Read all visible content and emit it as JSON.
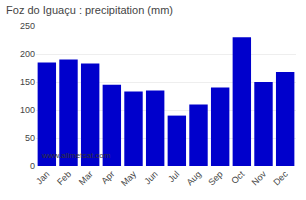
{
  "chart_data": {
    "type": "bar",
    "title": "Foz do Iguaçu : precipitation (mm)",
    "categories": [
      "Jan",
      "Feb",
      "Mar",
      "Apr",
      "May",
      "Jun",
      "Jul",
      "Aug",
      "Sep",
      "Oct",
      "Nov",
      "Dec"
    ],
    "values": [
      185,
      190,
      183,
      145,
      133,
      135,
      90,
      110,
      140,
      230,
      150,
      168
    ],
    "color": "#0000cc",
    "ylim": [
      0,
      250
    ],
    "yticks": [
      0,
      50,
      100,
      150,
      200,
      250
    ],
    "grid": true,
    "annotations": [
      "www.allmetsat.com"
    ]
  }
}
